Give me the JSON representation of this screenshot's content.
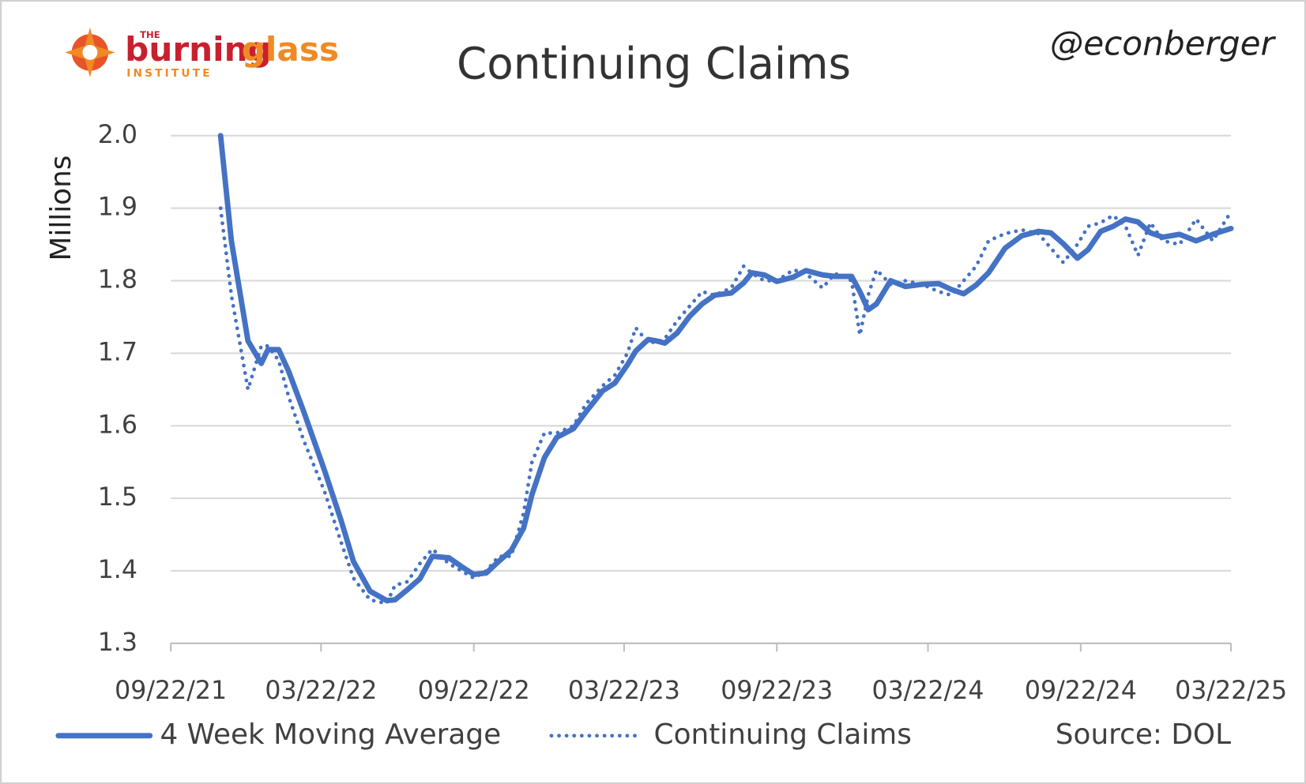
{
  "chart_data": {
    "type": "line",
    "title": "Continuing Claims",
    "handle": "@econberger",
    "source": "Source: DOL",
    "logo": {
      "the": "THE",
      "burning": "burning",
      "glass": "glass",
      "institute": "INSTITUTE"
    },
    "ylabel": "Millions",
    "x": [
      "11/21/21",
      "12/04/21",
      "12/24/21",
      "01/09/22",
      "01/17/22",
      "01/30/22",
      "02/11/22",
      "03/01/22",
      "03/26/22",
      "04/15/22",
      "04/30/22",
      "05/20/22",
      "06/09/22",
      "06/19/22",
      "07/04/22",
      "07/19/22",
      "08/03/22",
      "08/23/22",
      "09/07/22",
      "09/22/22",
      "10/07/22",
      "10/22/22",
      "11/06/22",
      "11/21/22",
      "12/01/22",
      "12/16/22",
      "12/31/22",
      "01/20/23",
      "02/04/23",
      "02/24/23",
      "03/11/23",
      "03/26/23",
      "04/05/23",
      "04/20/23",
      "04/30/23",
      "05/10/23",
      "05/25/23",
      "06/09/23",
      "06/24/23",
      "07/09/23",
      "07/29/23",
      "08/13/23",
      "08/23/23",
      "09/07/23",
      "09/22/23",
      "10/12/23",
      "10/27/23",
      "11/16/23",
      "12/01/23",
      "12/21/23",
      "12/31/23",
      "01/10/24",
      "01/20/24",
      "02/06/24",
      "02/24/24",
      "03/15/24",
      "04/04/24",
      "04/19/24",
      "05/04/24",
      "05/19/24",
      "06/03/24",
      "06/23/24",
      "07/13/24",
      "08/02/24",
      "08/17/24",
      "09/01/24",
      "09/18/24",
      "10/01/24",
      "10/16/24",
      "10/31/24",
      "11/15/24",
      "11/30/24",
      "12/15/24",
      "12/30/24",
      "01/19/25",
      "02/08/25",
      "02/28/25",
      "03/22/25"
    ],
    "series": [
      {
        "name": "4 Week Moving Average",
        "color": "#4472c4",
        "style": "solid",
        "values": [
          2.0,
          1.855,
          1.717,
          1.686,
          1.705,
          1.705,
          1.675,
          1.62,
          1.539,
          1.47,
          1.413,
          1.372,
          1.359,
          1.36,
          1.374,
          1.389,
          1.42,
          1.418,
          1.406,
          1.395,
          1.397,
          1.413,
          1.428,
          1.459,
          1.505,
          1.556,
          1.584,
          1.596,
          1.619,
          1.648,
          1.659,
          1.684,
          1.703,
          1.719,
          1.717,
          1.714,
          1.728,
          1.751,
          1.768,
          1.78,
          1.783,
          1.797,
          1.811,
          1.808,
          1.799,
          1.805,
          1.814,
          1.808,
          1.806,
          1.806,
          1.785,
          1.76,
          1.768,
          1.8,
          1.792,
          1.795,
          1.796,
          1.788,
          1.782,
          1.794,
          1.811,
          1.845,
          1.862,
          1.868,
          1.866,
          1.851,
          1.831,
          1.843,
          1.868,
          1.875,
          1.885,
          1.881,
          1.866,
          1.86,
          1.864,
          1.855,
          1.864,
          1.872
        ]
      },
      {
        "name": "Continuing Claims",
        "color": "#4472c4",
        "style": "dotted",
        "values": [
          1.9,
          1.78,
          1.65,
          1.71,
          1.71,
          1.69,
          1.64,
          1.58,
          1.51,
          1.44,
          1.39,
          1.36,
          1.355,
          1.38,
          1.385,
          1.41,
          1.43,
          1.41,
          1.4,
          1.39,
          1.4,
          1.42,
          1.42,
          1.48,
          1.55,
          1.59,
          1.59,
          1.6,
          1.63,
          1.655,
          1.67,
          1.7,
          1.735,
          1.715,
          1.715,
          1.72,
          1.745,
          1.765,
          1.785,
          1.78,
          1.79,
          1.82,
          1.81,
          1.8,
          1.8,
          1.815,
          1.81,
          1.79,
          1.81,
          1.8,
          1.725,
          1.78,
          1.815,
          1.795,
          1.8,
          1.795,
          1.785,
          1.78,
          1.8,
          1.82,
          1.855,
          1.865,
          1.87,
          1.865,
          1.845,
          1.825,
          1.85,
          1.875,
          1.88,
          1.89,
          1.875,
          1.835,
          1.88,
          1.855,
          1.85,
          1.885,
          1.855,
          1.895
        ]
      }
    ],
    "xlim": [
      "09/22/21",
      "03/22/25"
    ],
    "xticks": [
      "09/22/21",
      "03/22/22",
      "09/22/22",
      "03/22/23",
      "09/22/23",
      "03/22/24",
      "09/22/24",
      "03/22/25"
    ],
    "ylim": [
      1.3,
      2.0
    ],
    "yticks": [
      1.3,
      1.4,
      1.5,
      1.6,
      1.7,
      1.8,
      1.9,
      {
        "value": 2.0,
        "label": "2.0"
      }
    ],
    "grid": true
  }
}
